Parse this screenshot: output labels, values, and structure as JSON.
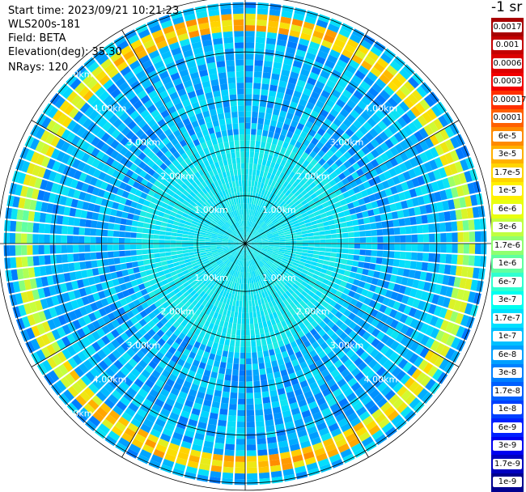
{
  "info": {
    "start_time": "Start time: 2023/09/21 10:21:23",
    "instrument": "WLS200s-181",
    "field": "Field: BETA",
    "elevation": "Elevation(deg): 35.30",
    "nrays": "NRays: 120"
  },
  "colorbar": {
    "title": "-1 sr",
    "labels": [
      "0.0017",
      "0.001",
      "0.0006",
      "0.0003",
      "0.00017",
      "0.0001",
      "6e-5",
      "3e-5",
      "1.7e-5",
      "1e-5",
      "6e-6",
      "3e-6",
      "1.7e-6",
      "1e-6",
      "6e-7",
      "3e-7",
      "1.7e-7",
      "1e-7",
      "6e-8",
      "3e-8",
      "1.7e-8",
      "1e-8",
      "6e-9",
      "3e-9",
      "1.7e-9",
      "1e-9"
    ],
    "colors": [
      "#a80000",
      "#c40000",
      "#dc0000",
      "#f20000",
      "#ff3000",
      "#ff6000",
      "#ff8a00",
      "#ffb000",
      "#ffd400",
      "#fff000",
      "#e8ff10",
      "#c0ff40",
      "#90ff70",
      "#60ffa0",
      "#30ffd0",
      "#00fff0",
      "#00e0ff",
      "#00c0ff",
      "#00a0ff",
      "#0080ff",
      "#0060ff",
      "#0040ff",
      "#0020ff",
      "#0000f0",
      "#0000c0",
      "#000090"
    ]
  },
  "chart_data": {
    "type": "heatmap",
    "projection": "polar PPI scan",
    "field": "BETA",
    "units": "sr-1",
    "nrays": 120,
    "elevation_deg": 35.3,
    "range_rings_km": [
      1,
      2,
      3,
      4,
      5
    ],
    "ring_labels": [
      "1.00km",
      "2.00km",
      "3.00km",
      "4.00km",
      "5.00km"
    ],
    "max_range_km": 5.15,
    "spokes_deg_step": 30,
    "log_scale": true,
    "color_limits": [
      1e-09,
      0.0017
    ],
    "background_level": 1e-07,
    "feature_annulus": {
      "range_km": [
        4.45,
        4.85
      ],
      "peak_beta": 3e-05,
      "strongest_azimuth": "south and north"
    },
    "near_range_level": 3e-07
  }
}
